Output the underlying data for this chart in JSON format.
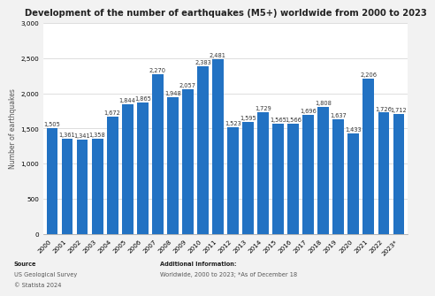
{
  "title": "Development of the number of earthquakes (M5+) worldwide from 2000 to 2023",
  "ylabel": "Number of earthquakes",
  "years": [
    "2000",
    "2001",
    "2002",
    "2003",
    "2004",
    "2005",
    "2006",
    "2007",
    "2008",
    "2009",
    "2010",
    "2011",
    "2012",
    "2013",
    "2014",
    "2015",
    "2016",
    "2017",
    "2018",
    "2019",
    "2020",
    "2021",
    "2022",
    "2023*"
  ],
  "values": [
    1505,
    1361,
    1341,
    1358,
    1672,
    1844,
    1865,
    2270,
    1948,
    2057,
    2383,
    2481,
    1523,
    1595,
    1729,
    1565,
    1566,
    1696,
    1808,
    1637,
    1433,
    2206,
    1726,
    1712
  ],
  "bar_color": "#2272c3",
  "bg_color": "#f2f2f2",
  "plot_bg_color": "#ffffff",
  "ylim": [
    0,
    3000
  ],
  "yticks": [
    0,
    500,
    1000,
    1500,
    2000,
    2500,
    3000
  ],
  "source_line1": "Source",
  "source_line2": "US Geological Survey",
  "source_line3": "© Statista 2024",
  "additional_line1": "Additional Information:",
  "additional_line2": "Worldwide, 2000 to 2023; *As of December 18",
  "label_fontsize": 4.8,
  "title_fontsize": 7.2,
  "axis_label_fontsize": 5.5,
  "tick_fontsize": 5.2,
  "footer_fontsize": 4.8
}
